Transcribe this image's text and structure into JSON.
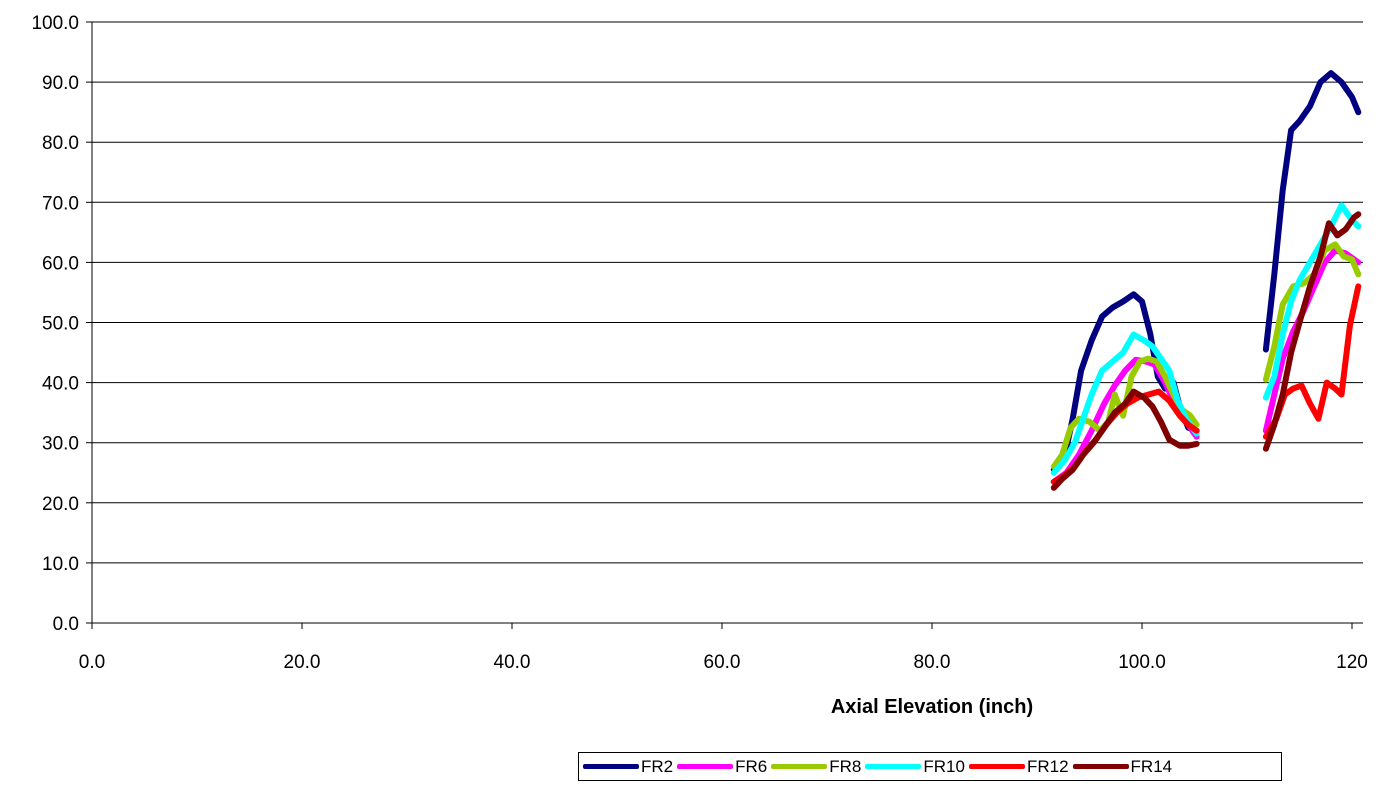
{
  "chart_data": {
    "type": "line",
    "title": "",
    "xlabel": "Axial Elevation (inch)",
    "ylabel": "",
    "xlim": [
      0,
      120
    ],
    "ylim": [
      0,
      100
    ],
    "x_ticks": [
      "0.0",
      "20.0",
      "40.0",
      "60.0",
      "80.0",
      "100.0",
      "120"
    ],
    "y_ticks": [
      "0.0",
      "10.0",
      "20.0",
      "30.0",
      "40.0",
      "50.0",
      "60.0",
      "70.0",
      "80.0",
      "90.0",
      "100.0"
    ],
    "grid": "horizontal",
    "legend_position": "bottom-right",
    "series": [
      {
        "name": "FR2",
        "color": "#000080",
        "segments": [
          [
            [
              91.6,
              25.5
            ],
            [
              92.6,
              27.5
            ],
            [
              93.4,
              34.0
            ],
            [
              94.2,
              42.0
            ],
            [
              95.2,
              47.0
            ],
            [
              96.2,
              51.0
            ],
            [
              97.2,
              52.5
            ],
            [
              98.2,
              53.5
            ],
            [
              99.2,
              54.7
            ],
            [
              100.0,
              53.5
            ],
            [
              100.8,
              48.0
            ],
            [
              101.5,
              41.0
            ],
            [
              102.2,
              39.0
            ],
            [
              103.0,
              40.0
            ],
            [
              103.6,
              36.0
            ],
            [
              104.4,
              32.5
            ],
            [
              105.2,
              32.0
            ]
          ],
          [
            [
              111.8,
              45.5
            ],
            [
              112.6,
              58.0
            ],
            [
              113.4,
              72.0
            ],
            [
              114.2,
              82.0
            ],
            [
              115.0,
              83.5
            ],
            [
              116.0,
              86.0
            ],
            [
              117.0,
              90.0
            ],
            [
              118.0,
              91.5
            ],
            [
              119.0,
              90.0
            ],
            [
              120.0,
              87.5
            ],
            [
              120.6,
              85.0
            ]
          ]
        ]
      },
      {
        "name": "FR6",
        "color": "#ff00ff",
        "segments": [
          [
            [
              91.6,
              23.5
            ],
            [
              92.8,
              25.0
            ],
            [
              94.0,
              28.0
            ],
            [
              95.2,
              32.0
            ],
            [
              96.4,
              36.5
            ],
            [
              97.4,
              39.5
            ],
            [
              98.4,
              42.0
            ],
            [
              99.4,
              43.8
            ],
            [
              100.4,
              43.5
            ],
            [
              101.2,
              43.0
            ],
            [
              102.2,
              40.0
            ],
            [
              103.0,
              37.0
            ],
            [
              104.0,
              34.0
            ],
            [
              105.2,
              31.0
            ]
          ],
          [
            [
              111.8,
              32.0
            ],
            [
              112.6,
              38.0
            ],
            [
              113.4,
              44.0
            ],
            [
              114.4,
              48.5
            ],
            [
              115.4,
              52.0
            ],
            [
              116.4,
              56.0
            ],
            [
              117.4,
              60.0
            ],
            [
              118.4,
              62.0
            ],
            [
              119.4,
              61.5
            ],
            [
              120.6,
              60.0
            ]
          ]
        ]
      },
      {
        "name": "FR8",
        "color": "#99cc00",
        "segments": [
          [
            [
              91.6,
              26.0
            ],
            [
              92.4,
              28.0
            ],
            [
              93.2,
              32.5
            ],
            [
              94.0,
              34.0
            ],
            [
              95.0,
              33.5
            ],
            [
              96.0,
              32.0
            ],
            [
              96.8,
              33.5
            ],
            [
              97.4,
              38.0
            ],
            [
              98.2,
              34.5
            ],
            [
              99.0,
              41.0
            ],
            [
              99.8,
              43.5
            ],
            [
              100.6,
              44.0
            ],
            [
              101.4,
              43.5
            ],
            [
              102.2,
              41.0
            ],
            [
              103.0,
              38.0
            ],
            [
              103.8,
              35.5
            ],
            [
              104.6,
              34.5
            ],
            [
              105.2,
              33.0
            ]
          ],
          [
            [
              111.8,
              40.5
            ],
            [
              112.6,
              46.0
            ],
            [
              113.4,
              53.0
            ],
            [
              114.4,
              56.0
            ],
            [
              115.4,
              56.5
            ],
            [
              116.4,
              58.0
            ],
            [
              117.4,
              62.0
            ],
            [
              118.4,
              63.0
            ],
            [
              119.2,
              61.0
            ],
            [
              120.0,
              60.5
            ],
            [
              120.6,
              58.0
            ]
          ]
        ]
      },
      {
        "name": "FR10",
        "color": "#00ffff",
        "segments": [
          [
            [
              91.6,
              25.0
            ],
            [
              92.6,
              27.0
            ],
            [
              93.6,
              30.0
            ],
            [
              94.4,
              34.0
            ],
            [
              95.2,
              38.0
            ],
            [
              96.2,
              42.0
            ],
            [
              97.2,
              43.5
            ],
            [
              98.2,
              45.0
            ],
            [
              99.2,
              48.0
            ],
            [
              100.2,
              47.0
            ],
            [
              101.0,
              46.0
            ],
            [
              101.8,
              44.0
            ],
            [
              102.6,
              42.0
            ],
            [
              103.4,
              37.0
            ],
            [
              104.2,
              34.0
            ],
            [
              105.2,
              31.5
            ]
          ],
          [
            [
              111.8,
              37.5
            ],
            [
              112.6,
              41.0
            ],
            [
              113.4,
              48.0
            ],
            [
              114.2,
              53.5
            ],
            [
              115.0,
              57.0
            ],
            [
              116.0,
              60.0
            ],
            [
              117.0,
              63.0
            ],
            [
              118.0,
              66.0
            ],
            [
              119.0,
              69.5
            ],
            [
              120.0,
              67.0
            ],
            [
              120.6,
              66.0
            ]
          ]
        ]
      },
      {
        "name": "FR12",
        "color": "#ff0000",
        "segments": [
          [
            [
              91.6,
              23.5
            ],
            [
              92.6,
              24.5
            ],
            [
              93.6,
              26.0
            ],
            [
              94.6,
              28.5
            ],
            [
              95.6,
              30.5
            ],
            [
              96.6,
              33.0
            ],
            [
              97.6,
              35.0
            ],
            [
              98.6,
              36.5
            ],
            [
              99.6,
              37.5
            ],
            [
              100.6,
              38.0
            ],
            [
              101.6,
              38.5
            ],
            [
              102.6,
              37.0
            ],
            [
              103.6,
              34.5
            ],
            [
              104.4,
              33.0
            ],
            [
              105.2,
              32.0
            ]
          ],
          [
            [
              111.8,
              31.0
            ],
            [
              112.8,
              34.0
            ],
            [
              113.6,
              38.0
            ],
            [
              114.4,
              39.0
            ],
            [
              115.2,
              39.5
            ],
            [
              116.0,
              36.5
            ],
            [
              116.8,
              34.0
            ],
            [
              117.6,
              40.0
            ],
            [
              118.4,
              39.0
            ],
            [
              119.0,
              38.0
            ],
            [
              119.8,
              49.5
            ],
            [
              120.6,
              56.0
            ]
          ]
        ]
      },
      {
        "name": "FR14",
        "color": "#800000",
        "segments": [
          [
            [
              91.6,
              22.5
            ],
            [
              92.4,
              24.0
            ],
            [
              93.4,
              25.5
            ],
            [
              94.4,
              28.0
            ],
            [
              95.4,
              30.0
            ],
            [
              96.4,
              32.5
            ],
            [
              97.4,
              35.0
            ],
            [
              98.4,
              36.5
            ],
            [
              99.2,
              38.5
            ],
            [
              100.2,
              37.5
            ],
            [
              101.0,
              36.0
            ],
            [
              101.8,
              33.5
            ],
            [
              102.6,
              30.5
            ],
            [
              103.6,
              29.5
            ],
            [
              104.4,
              29.5
            ],
            [
              105.2,
              29.8
            ]
          ],
          [
            [
              111.8,
              29.0
            ],
            [
              112.6,
              33.0
            ],
            [
              113.4,
              38.0
            ],
            [
              114.2,
              45.0
            ],
            [
              115.0,
              50.0
            ],
            [
              116.0,
              56.0
            ],
            [
              117.0,
              61.0
            ],
            [
              117.8,
              66.5
            ],
            [
              118.6,
              64.5
            ],
            [
              119.4,
              65.5
            ],
            [
              120.2,
              67.5
            ],
            [
              120.6,
              68.0
            ]
          ]
        ]
      }
    ]
  }
}
